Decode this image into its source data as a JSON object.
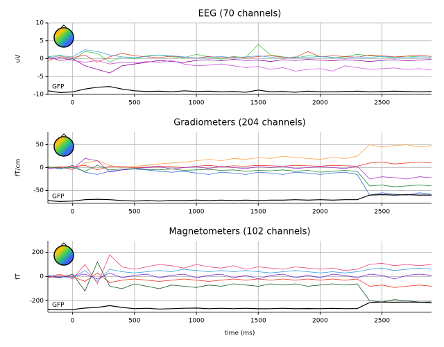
{
  "chart_data": [
    {
      "type": "line",
      "title": "EEG (70 channels)",
      "ylabel": "uV",
      "grid": true,
      "xlim": [
        -200,
        2900
      ],
      "xticks": [
        0,
        500,
        1000,
        1500,
        2000,
        2500
      ],
      "ylim": [
        -10,
        10
      ],
      "yticks": [
        -10,
        -5,
        0,
        5,
        10
      ],
      "x": [
        -200,
        -100,
        0,
        100,
        200,
        300,
        400,
        500,
        600,
        700,
        800,
        900,
        1000,
        1100,
        1200,
        1300,
        1400,
        1500,
        1600,
        1700,
        1800,
        1900,
        2000,
        2100,
        2200,
        2300,
        2400,
        2500,
        2600,
        2700,
        2800,
        2900
      ],
      "series": [
        {
          "color": "#33cc44",
          "values": [
            0.5,
            1,
            -0.5,
            2,
            1.5,
            -1,
            0.5,
            0,
            0.8,
            1,
            0.5,
            0.3,
            1.2,
            0.5,
            -0.2,
            0.6,
            0.3,
            4,
            1,
            0.5,
            0.2,
            0.8,
            0.6,
            0.3,
            0.5,
            1.2,
            0.8,
            0.5,
            0.3,
            0.7,
            0.5,
            0.4
          ]
        },
        {
          "color": "#880099",
          "values": [
            0.5,
            -0.5,
            0,
            -2,
            -3,
            -4,
            -2,
            -1.5,
            -1,
            -0.5,
            -0.8,
            -1,
            -0.5,
            -0.3,
            -0.6,
            -0.2,
            -0.5,
            -0.4,
            -0.8,
            -0.3,
            -0.5,
            -0.2,
            -0.4,
            -0.6,
            -0.3,
            -0.5,
            -0.8,
            -0.5,
            -0.3,
            -0.6,
            -0.4,
            -0.2
          ]
        },
        {
          "color": "#e8402a",
          "values": [
            -0.5,
            0.5,
            0.3,
            1,
            -1,
            0.5,
            1.5,
            0.8,
            0.5,
            0.3,
            0.7,
            0.4,
            0.2,
            0.6,
            0.3,
            0.5,
            0.2,
            0.6,
            0.8,
            0.4,
            0.3,
            2,
            0.5,
            0.8,
            0.6,
            0.4,
            1,
            0.8,
            0.5,
            0.7,
            1,
            0.6
          ]
        },
        {
          "color": "#4da6e8",
          "values": [
            0.2,
            0.8,
            0.5,
            2.5,
            2,
            1,
            0.5,
            0.3,
            0.6,
            1,
            0.8,
            0.5,
            0.2,
            0.4,
            0.6,
            0.3,
            0.5,
            0.8,
            0.4,
            0.2,
            0.5,
            0.3,
            0.6,
            0.4,
            0.2,
            0.5,
            0.3,
            0.6,
            0.4,
            0.3,
            0.5,
            0.4
          ]
        },
        {
          "color": "#cc55dd",
          "values": [
            0,
            0.3,
            -0.5,
            -1,
            -0.5,
            -1.5,
            -1,
            -1.2,
            -0.8,
            -1,
            -0.5,
            -1.5,
            -2,
            -1.8,
            -1.5,
            -2,
            -2.5,
            -2.2,
            -3,
            -2.5,
            -3.5,
            -3,
            -2.8,
            -3.5,
            -2,
            -2.5,
            -3,
            -2.8,
            -2.6,
            -3,
            -2.8,
            -3.2
          ]
        },
        {
          "name": "GFP",
          "color": "#000000",
          "values": [
            -9,
            -9.5,
            -9.3,
            -8.5,
            -8,
            -7.8,
            -8.5,
            -9,
            -9.2,
            -9.1,
            -9.3,
            -9,
            -9.2,
            -9.1,
            -9.3,
            -9.2,
            -9.4,
            -8.8,
            -9.3,
            -9.2,
            -9.4,
            -9.1,
            -9.3,
            -9.3,
            -9.2,
            -9.1,
            -9.3,
            -9.2,
            -9.1,
            -9.2,
            -9.3,
            -9.2
          ]
        }
      ]
    },
    {
      "type": "line",
      "title": "Gradiometers (204 channels)",
      "ylabel": "fT/cm",
      "grid": true,
      "xlim": [
        -200,
        2900
      ],
      "xticks": [
        0,
        500,
        1000,
        1500,
        2000,
        2500
      ],
      "ylim": [
        -78,
        78
      ],
      "yticks": [
        -50,
        0,
        50
      ],
      "x": [
        -200,
        -100,
        0,
        100,
        200,
        300,
        400,
        500,
        600,
        700,
        800,
        900,
        1000,
        1100,
        1200,
        1300,
        1400,
        1500,
        1600,
        1700,
        1800,
        1900,
        2000,
        2100,
        2200,
        2300,
        2400,
        2500,
        2600,
        2700,
        2800,
        2900
      ],
      "series": [
        {
          "color": "#ffa040",
          "values": [
            0,
            2,
            -5,
            10,
            15,
            5,
            0,
            3,
            5,
            8,
            10,
            12,
            15,
            18,
            15,
            20,
            18,
            22,
            20,
            25,
            22,
            20,
            18,
            22,
            20,
            25,
            50,
            45,
            48,
            50,
            45,
            48
          ]
        },
        {
          "color": "#3366dd",
          "values": [
            2,
            -3,
            5,
            -10,
            -15,
            -8,
            -5,
            -3,
            -5,
            -8,
            -10,
            -8,
            -12,
            -15,
            -10,
            -12,
            -15,
            -10,
            -12,
            -15,
            -10,
            -12,
            -15,
            -12,
            -10,
            -15,
            -60,
            -55,
            -58,
            -60,
            -55,
            -58
          ]
        },
        {
          "color": "#ee3322",
          "values": [
            0,
            1,
            2,
            5,
            -5,
            3,
            2,
            0,
            1,
            3,
            2,
            0,
            3,
            5,
            2,
            4,
            3,
            5,
            4,
            3,
            5,
            4,
            3,
            5,
            4,
            3,
            10,
            12,
            8,
            10,
            12,
            10
          ]
        },
        {
          "color": "#aa33cc",
          "values": [
            -2,
            0,
            -3,
            20,
            15,
            -10,
            -5,
            -2,
            0,
            2,
            -3,
            0,
            2,
            -2,
            3,
            0,
            -2,
            2,
            0,
            3,
            -2,
            0,
            2,
            0,
            -2,
            3,
            -25,
            -20,
            -22,
            -25,
            -20,
            -22
          ]
        },
        {
          "color": "#228833",
          "values": [
            1,
            -1,
            0,
            -8,
            5,
            -5,
            -3,
            -2,
            -4,
            -5,
            -3,
            -6,
            -5,
            -4,
            -6,
            -5,
            -8,
            -6,
            -7,
            -5,
            -8,
            -6,
            -10,
            -8,
            -6,
            -8,
            -40,
            -38,
            -42,
            -40,
            -38,
            -40
          ]
        },
        {
          "name": "GFP",
          "color": "#000000",
          "values": [
            -72,
            -74,
            -73,
            -70,
            -69,
            -70,
            -72,
            -73,
            -72,
            -73,
            -72,
            -72,
            -71,
            -72,
            -71,
            -72,
            -71,
            -72,
            -71,
            -71,
            -70,
            -71,
            -70,
            -71,
            -70,
            -70,
            -60,
            -59,
            -60,
            -59,
            -60,
            -60
          ]
        }
      ]
    },
    {
      "type": "line",
      "title": "Magnetometers (102 channels)",
      "ylabel": "fT",
      "xlabel": "time (ms)",
      "grid": true,
      "xlim": [
        -200,
        2900
      ],
      "xticks": [
        0,
        500,
        1000,
        1500,
        2000,
        2500
      ],
      "ylim": [
        -295,
        295
      ],
      "yticks": [
        -200,
        0,
        200
      ],
      "x": [
        -200,
        -100,
        0,
        100,
        200,
        300,
        400,
        500,
        600,
        700,
        800,
        900,
        1000,
        1100,
        1200,
        1300,
        1400,
        1500,
        1600,
        1700,
        1800,
        1900,
        2000,
        2100,
        2200,
        2300,
        2400,
        2500,
        2600,
        2700,
        2800,
        2900
      ],
      "series": [
        {
          "color": "#ee4477",
          "values": [
            0,
            20,
            -20,
            100,
            -60,
            180,
            80,
            60,
            80,
            100,
            90,
            70,
            100,
            80,
            70,
            90,
            60,
            80,
            70,
            60,
            80,
            70,
            60,
            70,
            50,
            60,
            100,
            110,
            90,
            100,
            90,
            100
          ]
        },
        {
          "color": "#115522",
          "values": [
            0,
            -10,
            20,
            -120,
            120,
            -80,
            -100,
            -60,
            -80,
            -100,
            -70,
            -80,
            -90,
            -70,
            -80,
            -60,
            -70,
            -80,
            -60,
            -70,
            -60,
            -80,
            -70,
            -60,
            -70,
            -60,
            -200,
            -210,
            -190,
            -200,
            -210,
            -220
          ]
        },
        {
          "color": "#3399dd",
          "values": [
            10,
            0,
            -10,
            50,
            -40,
            60,
            40,
            30,
            40,
            50,
            40,
            60,
            50,
            40,
            50,
            40,
            50,
            40,
            30,
            40,
            50,
            40,
            30,
            40,
            30,
            40,
            60,
            70,
            50,
            60,
            70,
            60
          ]
        },
        {
          "color": "#ee3322",
          "values": [
            -10,
            10,
            0,
            -40,
            30,
            -50,
            -30,
            -20,
            -30,
            -40,
            -30,
            -20,
            -30,
            -40,
            -30,
            -20,
            -30,
            -20,
            -30,
            -20,
            -30,
            -20,
            -30,
            -20,
            -30,
            -20,
            -80,
            -70,
            -90,
            -80,
            -70,
            -80
          ]
        },
        {
          "color": "#7722cc",
          "values": [
            0,
            -5,
            5,
            20,
            -20,
            30,
            -10,
            10,
            20,
            -10,
            10,
            20,
            -10,
            10,
            20,
            -10,
            10,
            -20,
            10,
            20,
            -10,
            10,
            -10,
            20,
            10,
            -10,
            20,
            10,
            -20,
            10,
            20,
            10
          ]
        },
        {
          "name": "GFP",
          "color": "#000000",
          "values": [
            -270,
            -275,
            -272,
            -260,
            -255,
            -240,
            -255,
            -265,
            -262,
            -268,
            -265,
            -262,
            -260,
            -265,
            -262,
            -265,
            -262,
            -266,
            -265,
            -262,
            -266,
            -264,
            -265,
            -263,
            -265,
            -264,
            -215,
            -210,
            -212,
            -210,
            -212,
            -210
          ]
        }
      ]
    }
  ]
}
